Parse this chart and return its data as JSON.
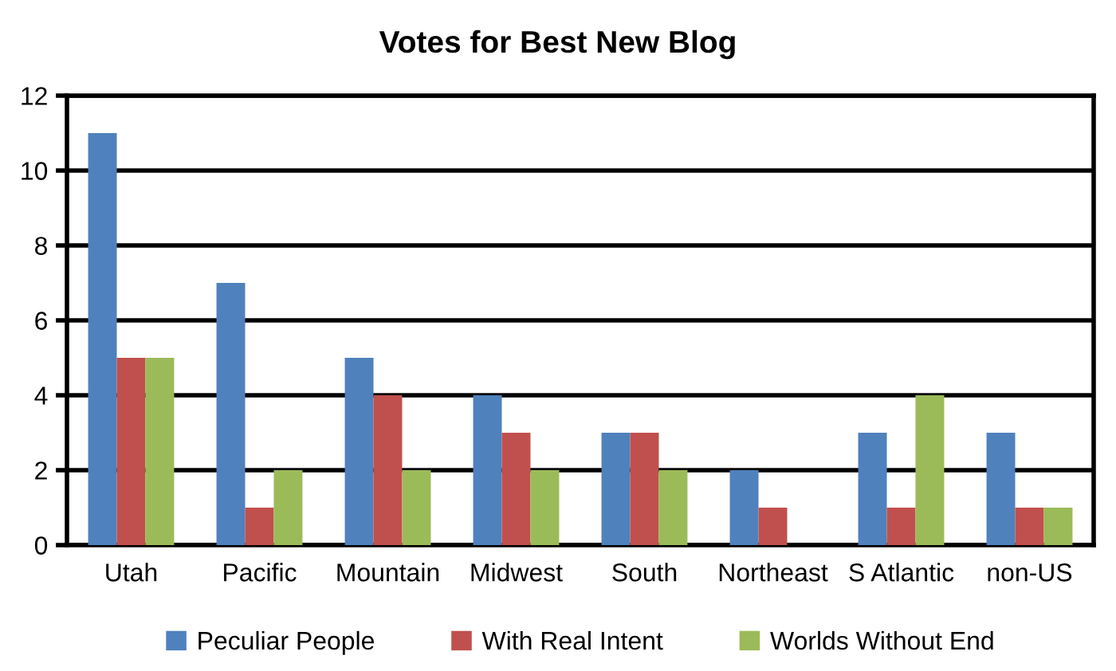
{
  "chart_data": {
    "type": "bar",
    "title": "Votes for Best New Blog",
    "categories": [
      "Utah",
      "Pacific",
      "Mountain",
      "Midwest",
      "South",
      "Northeast",
      "S Atlantic",
      "non-US"
    ],
    "series": [
      {
        "name": "Peculiar People",
        "color": "#4f81bd",
        "values": [
          11,
          7,
          5,
          4,
          3,
          2,
          3,
          3
        ]
      },
      {
        "name": "With Real Intent",
        "color": "#c0504d",
        "values": [
          5,
          1,
          4,
          3,
          3,
          1,
          1,
          1
        ]
      },
      {
        "name": "Worlds Without End",
        "color": "#9bbb59",
        "values": [
          5,
          2,
          2,
          2,
          2,
          0,
          4,
          1
        ]
      }
    ],
    "ylim": [
      0,
      12
    ],
    "yticks": [
      0,
      2,
      4,
      6,
      8,
      10,
      12
    ],
    "grid": "y",
    "legend": "bottom"
  }
}
